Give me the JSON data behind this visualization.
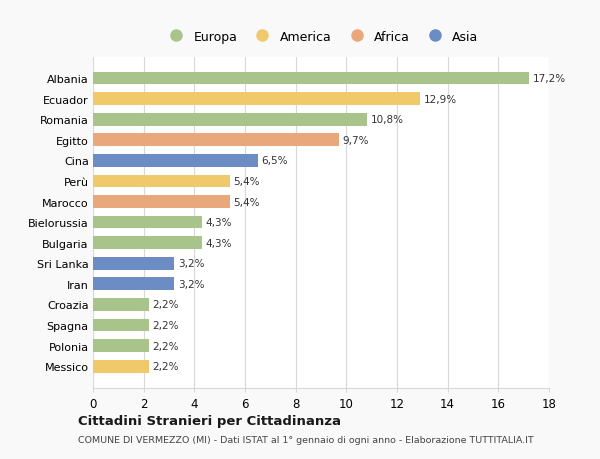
{
  "categories": [
    "Albania",
    "Ecuador",
    "Romania",
    "Egitto",
    "Cina",
    "Perù",
    "Marocco",
    "Bielorussia",
    "Bulgaria",
    "Sri Lanka",
    "Iran",
    "Croazia",
    "Spagna",
    "Polonia",
    "Messico"
  ],
  "values": [
    17.2,
    12.9,
    10.8,
    9.7,
    6.5,
    5.4,
    5.4,
    4.3,
    4.3,
    3.2,
    3.2,
    2.2,
    2.2,
    2.2,
    2.2
  ],
  "labels": [
    "17,2%",
    "12,9%",
    "10,8%",
    "9,7%",
    "6,5%",
    "5,4%",
    "5,4%",
    "4,3%",
    "4,3%",
    "3,2%",
    "3,2%",
    "2,2%",
    "2,2%",
    "2,2%",
    "2,2%"
  ],
  "continents": [
    "Europa",
    "America",
    "Europa",
    "Africa",
    "Asia",
    "America",
    "Africa",
    "Europa",
    "Europa",
    "Asia",
    "Asia",
    "Europa",
    "Europa",
    "Europa",
    "America"
  ],
  "colors": {
    "Europa": "#a8c48a",
    "America": "#f0c96a",
    "Africa": "#e8a87c",
    "Asia": "#6b8dc4"
  },
  "legend_order": [
    "Europa",
    "America",
    "Africa",
    "Asia"
  ],
  "xlim": [
    0,
    18
  ],
  "xticks": [
    0,
    2,
    4,
    6,
    8,
    10,
    12,
    14,
    16,
    18
  ],
  "title": "Cittadini Stranieri per Cittadinanza",
  "subtitle": "COMUNE DI VERMEZZO (MI) - Dati ISTAT al 1° gennaio di ogni anno - Elaborazione TUTTITALIA.IT",
  "background_color": "#f9f9f9",
  "plot_background": "#ffffff",
  "grid_color": "#d8d8d8"
}
